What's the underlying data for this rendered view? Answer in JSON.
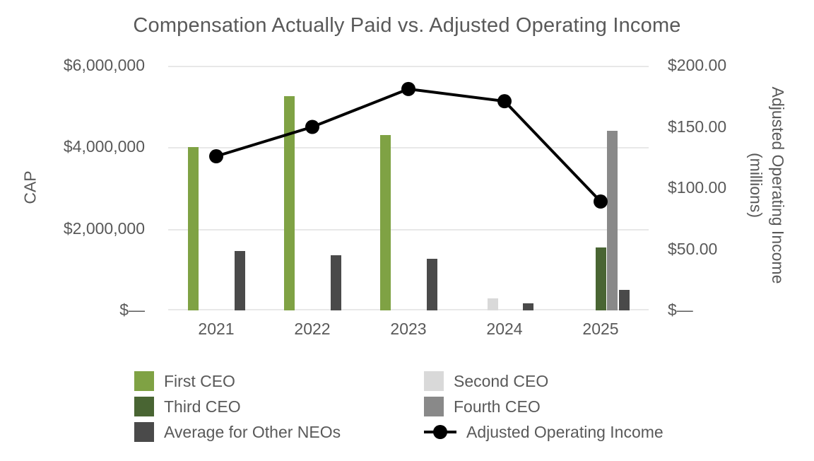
{
  "title": "Compensation Actually Paid vs. Adjusted Operating Income",
  "chart_data": {
    "type": "combo-bar-line",
    "categories": [
      "2021",
      "2022",
      "2023",
      "2024",
      "2025"
    ],
    "series": [
      {
        "name": "First CEO",
        "type": "bar",
        "axis": "left",
        "color": "#7FA244",
        "values": [
          4000000,
          5250000,
          4300000,
          0,
          0
        ]
      },
      {
        "name": "Second CEO",
        "type": "bar",
        "axis": "left",
        "color": "#D9D9D9",
        "values": [
          0,
          0,
          0,
          300000,
          0
        ]
      },
      {
        "name": "Third CEO",
        "type": "bar",
        "axis": "left",
        "color": "#496533",
        "values": [
          0,
          0,
          0,
          0,
          1550000
        ]
      },
      {
        "name": "Fourth CEO",
        "type": "bar",
        "axis": "left",
        "color": "#898989",
        "values": [
          0,
          0,
          0,
          0,
          4400000
        ]
      },
      {
        "name": "Average for Other NEOs",
        "type": "bar",
        "axis": "left",
        "color": "#4A4A4A",
        "values": [
          1450000,
          1350000,
          1270000,
          170000,
          510000
        ]
      },
      {
        "name": "Adjusted Operating Income",
        "type": "line",
        "axis": "right",
        "color": "#000000",
        "values": [
          126,
          150,
          181,
          171,
          89
        ]
      }
    ],
    "left_axis": {
      "title": "CAP",
      "min": 0,
      "max": 6000000,
      "tick_values": [
        0,
        2000000,
        4000000,
        6000000
      ],
      "tick_labels": [
        "$—",
        "$2,000,000",
        "$4,000,000",
        "$6,000,000"
      ]
    },
    "right_axis": {
      "title_line1": "Adjusted Operating Income",
      "title_line2": "(millions)",
      "min": 0,
      "max": 200,
      "tick_values": [
        0,
        50,
        100,
        150,
        200
      ],
      "tick_labels": [
        "$—",
        "$50.00",
        "$100.00",
        "$150.00",
        "$200.00"
      ]
    },
    "gridlines": "horizontal",
    "legend_position": "bottom"
  },
  "legend": {
    "items": [
      {
        "label": "First CEO",
        "marker": "square",
        "color": "#7FA244"
      },
      {
        "label": "Second CEO",
        "marker": "square",
        "color": "#D9D9D9"
      },
      {
        "label": "Third CEO",
        "marker": "square",
        "color": "#496533"
      },
      {
        "label": "Fourth CEO",
        "marker": "square",
        "color": "#898989"
      },
      {
        "label": "Average for Other NEOs",
        "marker": "square",
        "color": "#4A4A4A"
      },
      {
        "label": "Adjusted Operating Income",
        "marker": "line-dot",
        "color": "#000000"
      }
    ]
  },
  "colors": {
    "text": "#595959",
    "gridline": "#E8E8E8",
    "background": "#FFFFFF",
    "line": "#000000"
  }
}
